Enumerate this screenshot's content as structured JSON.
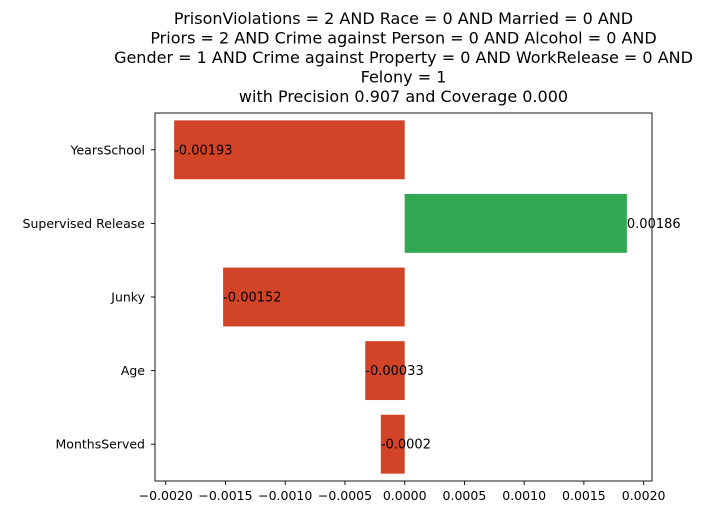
{
  "chart_data": {
    "type": "bar",
    "orientation": "horizontal",
    "title_lines": [
      "PrisonViolations = 2 AND Race = 0 AND Married = 0 AND",
      "Priors = 2 AND Crime against Person = 0 AND Alcohol = 0 AND",
      "Gender = 1 AND Crime against Property = 0 AND WorkRelease = 0 AND",
      "Felony = 1",
      "with Precision 0.907 and Coverage 0.000"
    ],
    "xlabel": "",
    "ylabel": "",
    "categories": [
      "YearsSchool",
      "Supervised Release",
      "Junky",
      "Age",
      "MonthsServed"
    ],
    "values": [
      -0.00193,
      0.00186,
      -0.00152,
      -0.00033,
      -0.0002
    ],
    "value_labels": [
      "-0.00193",
      "0.00186",
      "-0.00152",
      "-0.00033",
      "-0.0002"
    ],
    "xlim": [
      -0.00209,
      0.00207
    ],
    "xticks": [
      -0.002,
      -0.0015,
      -0.001,
      -0.0005,
      0.0,
      0.0005,
      0.001,
      0.0015,
      0.002
    ],
    "xtick_labels": [
      "−0.0020",
      "−0.0015",
      "−0.0010",
      "−0.0005",
      "0.0000",
      "0.0005",
      "0.0010",
      "0.0015",
      "0.0020"
    ],
    "grid": false,
    "legend": "none",
    "colors": {
      "positive": "#33a853",
      "negative": "#d24428",
      "axis": "#000000"
    }
  }
}
